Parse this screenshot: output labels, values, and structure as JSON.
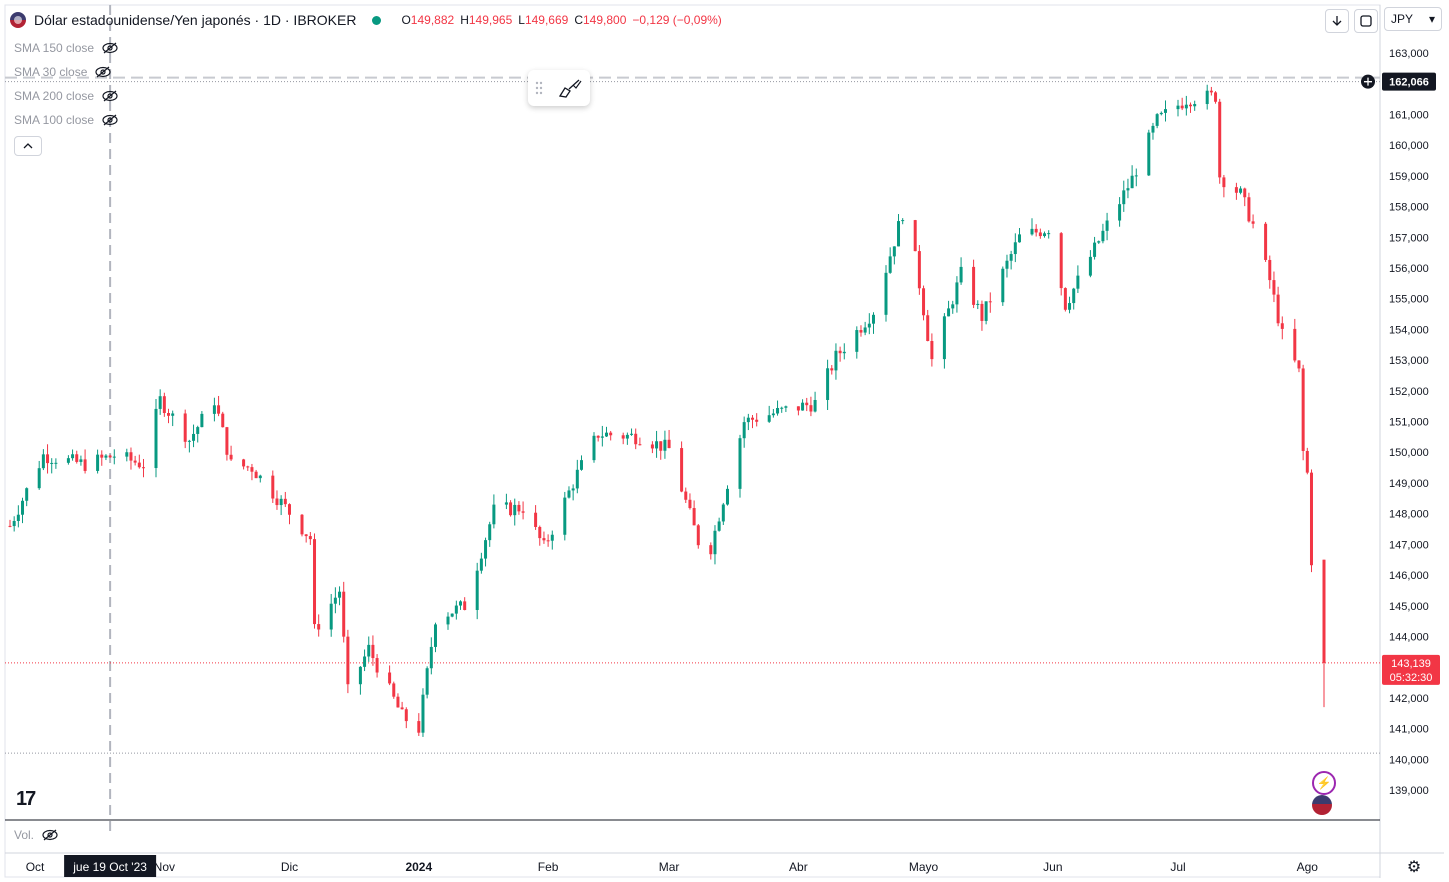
{
  "header": {
    "symbol_title": "Dólar estadounidense/Yen japonés · 1D · IBROKER",
    "ohlc": {
      "open_label": "O",
      "open": "149,882",
      "high_label": "H",
      "high": "149,965",
      "low_label": "L",
      "low": "149,669",
      "close_label": "C",
      "close": "149,800",
      "change": "−0,129 (−0,09%)"
    }
  },
  "indicators": [
    {
      "label": "SMA 150 close"
    },
    {
      "label": "SMA 30 close"
    },
    {
      "label": "SMA 200 close"
    },
    {
      "label": "SMA 100 close"
    }
  ],
  "currency_button": {
    "label": "JPY",
    "caret": "▾"
  },
  "volume_label": "Vol.",
  "logo_text": "17",
  "crosshair_date": "jue 19 Oct '23",
  "price_tags": {
    "top_line": "162,066",
    "current_price": "143,139",
    "countdown": "05:32:30"
  },
  "colors": {
    "up": "#089981",
    "down": "#f23645",
    "axis_text": "#131722",
    "grid": "#d1d4dc"
  },
  "icons": {
    "flag": "us-flag-icon",
    "eye_off": "eye-off-icon",
    "collapse": "chevron-up-icon",
    "drag": "drag-handle-icon",
    "brush": "brush-icon",
    "download": "arrow-down-icon",
    "fullscreen": "fullscreen-icon",
    "settings": "gear-icon",
    "add": "plus-circle-icon",
    "lightning": "lightning-event-icon",
    "us_event": "us-flag-event-icon"
  },
  "chart_data": {
    "type": "candlestick",
    "symbol": "USDJPY",
    "timeframe": "1D",
    "ylim": [
      138.5,
      163.5
    ],
    "y_ticks": [
      "163,000",
      "162,000",
      "161,000",
      "160,000",
      "159,000",
      "158,000",
      "157,000",
      "156,000",
      "155,000",
      "154,000",
      "153,000",
      "152,000",
      "151,000",
      "150,000",
      "149,000",
      "148,000",
      "147,000",
      "146,000",
      "145,000",
      "144,000",
      "143,000",
      "142,000",
      "141,000",
      "140,000",
      "139,000"
    ],
    "x_ticks": [
      "Oct",
      "Nov",
      "Dic",
      "2024",
      "Feb",
      "Mar",
      "Abr",
      "Mayo",
      "Jun",
      "Jul",
      "Ago"
    ],
    "price_anchors": [
      [
        "2023-09-25",
        147.6
      ],
      [
        "2023-10-03",
        149.9
      ],
      [
        "2023-10-13",
        149.6
      ],
      [
        "2023-10-20",
        149.9
      ],
      [
        "2023-10-27",
        149.6
      ],
      [
        "2023-10-31",
        151.7
      ],
      [
        "2023-11-07",
        150.4
      ],
      [
        "2023-11-13",
        151.7
      ],
      [
        "2023-11-17",
        149.6
      ],
      [
        "2023-11-22",
        149.5
      ],
      [
        "2023-11-30",
        148.2
      ],
      [
        "2023-12-06",
        147.2
      ],
      [
        "2023-12-07",
        144.2
      ],
      [
        "2023-12-13",
        145.5
      ],
      [
        "2023-12-15",
        142.2
      ],
      [
        "2023-12-20",
        143.6
      ],
      [
        "2023-12-28",
        141.4
      ],
      [
        "2024-01-01",
        141.0
      ],
      [
        "2024-01-05",
        144.6
      ],
      [
        "2024-01-12",
        145.0
      ],
      [
        "2024-01-19",
        148.1
      ],
      [
        "2024-01-26",
        148.2
      ],
      [
        "2024-01-31",
        146.9
      ],
      [
        "2024-02-08",
        149.3
      ],
      [
        "2024-02-13",
        150.6
      ],
      [
        "2024-02-23",
        150.5
      ],
      [
        "2024-03-01",
        150.1
      ],
      [
        "2024-03-08",
        147.1
      ],
      [
        "2024-03-11",
        146.9
      ],
      [
        "2024-03-15",
        149.0
      ],
      [
        "2024-03-19",
        151.0
      ],
      [
        "2024-03-27",
        151.3
      ],
      [
        "2024-04-05",
        151.6
      ],
      [
        "2024-04-10",
        153.1
      ],
      [
        "2024-04-19",
        154.6
      ],
      [
        "2024-04-26",
        157.8
      ],
      [
        "2024-04-29",
        156.3
      ],
      [
        "2024-05-03",
        153.0
      ],
      [
        "2024-05-10",
        155.8
      ],
      [
        "2024-05-15",
        154.4
      ],
      [
        "2024-05-24",
        157.0
      ],
      [
        "2024-05-31",
        157.3
      ],
      [
        "2024-06-04",
        154.8
      ],
      [
        "2024-06-14",
        157.4
      ],
      [
        "2024-06-20",
        158.9
      ],
      [
        "2024-06-26",
        160.8
      ],
      [
        "2024-07-03",
        161.5
      ],
      [
        "2024-07-10",
        161.6
      ],
      [
        "2024-07-11",
        159.0
      ],
      [
        "2024-07-16",
        158.4
      ],
      [
        "2024-07-19",
        157.4
      ],
      [
        "2024-07-23",
        155.6
      ],
      [
        "2024-07-26",
        153.8
      ],
      [
        "2024-07-30",
        152.6
      ],
      [
        "2024-07-31",
        150.0
      ],
      [
        "2024-08-01",
        149.3
      ],
      [
        "2024-08-02",
        146.5
      ],
      [
        "2024-08-05",
        143.1
      ]
    ],
    "last_candle": {
      "date": "2024-08-05",
      "open": 146.5,
      "high": 146.5,
      "low": 141.7,
      "close": 143.139
    },
    "reference_levels": {
      "high_line": 162.066,
      "low_line": 140.2
    },
    "volume_visible": false
  }
}
